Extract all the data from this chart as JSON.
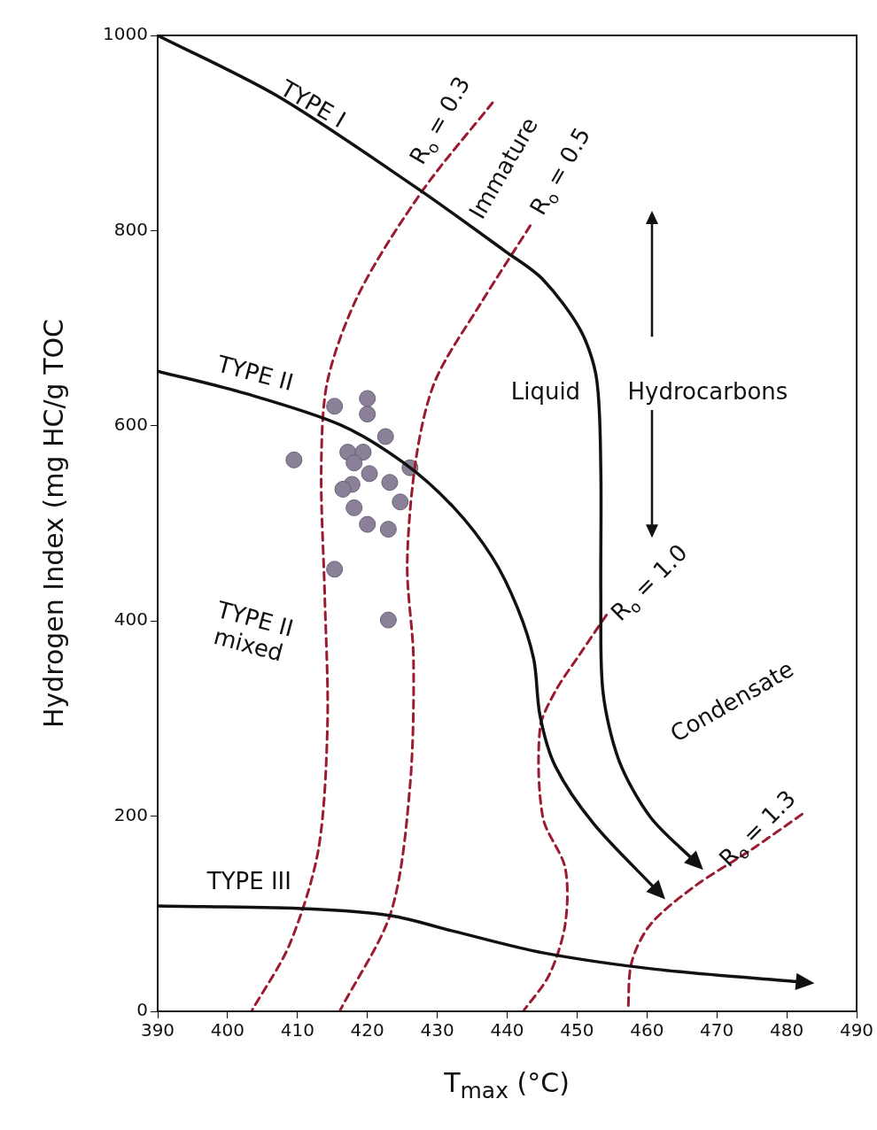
{
  "chart_data": {
    "type": "line",
    "xlabel": "T$_{max}$ (°C)",
    "ylabel": "Hydrogen Index (mg HC/g TOC",
    "xlim": [
      390,
      490
    ],
    "xticks": [
      390,
      400,
      410,
      420,
      430,
      440,
      450,
      460,
      470,
      480,
      490
    ],
    "ylim": [
      0,
      1000
    ],
    "yticks": [
      0,
      200,
      400,
      600,
      800,
      1000
    ],
    "legend": false,
    "series": [
      {
        "line_style": "solid",
        "color": "#111111",
        "x": [
          390,
          407.1,
          427.0,
          439.7,
          445.1,
          450.5,
          452.8,
          453.4,
          453.4,
          453.7,
          456.0,
          460.5,
          466.8
        ],
        "values": [
          1000,
          938,
          844,
          779,
          750,
          698,
          648,
          555,
          426,
          328,
          257,
          199,
          154
        ]
      },
      {
        "line_style": "solid",
        "color": "#111111",
        "x": [
          390,
          402.6,
          416.1,
          425.2,
          432.4,
          437.9,
          441.5,
          443.8,
          444.7,
          446.9,
          452.4,
          461.4
        ],
        "values": [
          656,
          633,
          601,
          562,
          516,
          465,
          413,
          361,
          303,
          251,
          192,
          124
        ]
      },
      {
        "line_style": "solid",
        "color": "#111111",
        "x": [
          390,
          411.6,
          423.4,
          432.4,
          445.1,
          461.4,
          482.2
        ],
        "values": [
          108,
          105,
          98,
          82,
          60,
          43,
          30
        ]
      },
      {
        "line_style": "dashed",
        "color": "#9b1b30",
        "x": [
          437.9,
          427.9,
          418.9,
          414.3,
          413.4,
          413.9,
          414.3,
          413.0,
          408.9,
          403.5
        ],
        "values": [
          931,
          841,
          737,
          646,
          555,
          426,
          296,
          166,
          69,
          1
        ]
      },
      {
        "line_style": "dashed",
        "color": "#9b1b30",
        "x": [
          443.3,
          436.1,
          429.7,
          427.0,
          425.7,
          426.6,
          426.1,
          423.4,
          416.1
        ],
        "values": [
          805,
          724,
          646,
          568,
          458,
          361,
          231,
          102,
          1
        ]
      },
      {
        "line_style": "dashed",
        "color": "#9b1b30",
        "x": [
          454.2,
          450.5,
          446.9,
          444.7,
          445.1,
          448.3,
          448.3,
          446.0,
          442.4
        ],
        "values": [
          406,
          367,
          328,
          290,
          199,
          147,
          89,
          37,
          1
        ]
      },
      {
        "line_style": "dashed",
        "color": "#9b1b30",
        "x": [
          482.2,
          475.0,
          466.8,
          460.5,
          457.8,
          457.3
        ],
        "values": [
          202,
          166,
          128,
          89,
          50,
          1
        ]
      },
      {
        "type": "scatter",
        "marker": "circle",
        "color": "#8a8098",
        "x": [
          409.5,
          415.3,
          420.0,
          420.0,
          422.6,
          417.2,
          419.4,
          418.1,
          426.1,
          417.8,
          420.3,
          423.2,
          416.5,
          424.7,
          418.1,
          420.0,
          423.0,
          415.3,
          423.0
        ],
        "values": [
          565,
          620,
          628,
          612,
          589,
          573,
          573,
          562,
          557,
          540,
          551,
          542,
          535,
          522,
          516,
          499,
          494,
          453,
          401
        ]
      }
    ],
    "annotations": [
      "TYPE I",
      "R$_{o}$ = 0.3",
      "Immature",
      "R$_{o}$ = 0.5",
      "TYPE II",
      "Liquid",
      "Hydrocarbons",
      "R$_{o}$ = 1.0",
      "TYPE II\nmixed",
      "Condensate",
      "R$_{o}$ = 1.3",
      "TYPE III"
    ]
  }
}
